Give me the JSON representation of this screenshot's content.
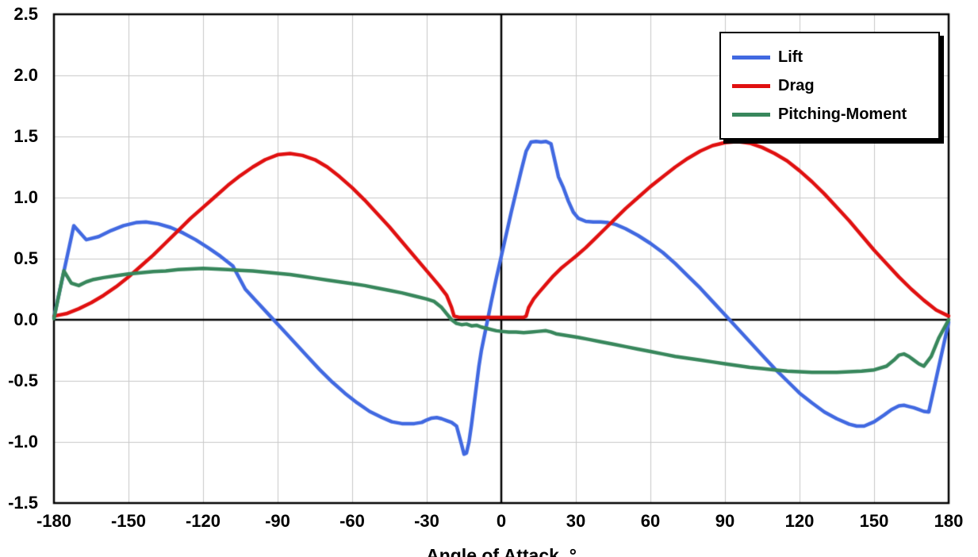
{
  "chart_data": {
    "type": "line",
    "title": "",
    "xlabel": "Angle of Attack, °",
    "ylabel": "",
    "xlim": [
      -180,
      180
    ],
    "ylim": [
      -1.5,
      2.5
    ],
    "grid": true,
    "legend_position": "top-right",
    "xticks": [
      -180,
      -150,
      -120,
      -90,
      -60,
      -30,
      0,
      30,
      60,
      90,
      120,
      150,
      180
    ],
    "xtick_labels": [
      "-180",
      "-150",
      "-120",
      "-90",
      "-60",
      "-30",
      "0",
      "30",
      "60",
      "90",
      "120",
      "150",
      "180"
    ],
    "yticks": [
      2.5,
      2.0,
      1.5,
      1.0,
      0.5,
      0.0,
      -0.5,
      -1.0,
      -1.5
    ],
    "ytick_labels": [
      "2.5",
      "2.0",
      "1.5",
      "1.0",
      "0.5",
      "0.0",
      "-0.5",
      "-1.0",
      "-1.5"
    ],
    "colors": {
      "grid": "#c8c8c8",
      "axis": "#000000",
      "border": "#000000"
    },
    "series": [
      {
        "name": "Lift",
        "color": "#4169e1",
        "points": [
          [
            -180,
            0.02
          ],
          [
            -172,
            0.77
          ],
          [
            -167,
            0.655
          ],
          [
            -162,
            0.68
          ],
          [
            -157,
            0.73
          ],
          [
            -152,
            0.77
          ],
          [
            -147,
            0.795
          ],
          [
            -143,
            0.8
          ],
          [
            -138,
            0.785
          ],
          [
            -133,
            0.755
          ],
          [
            -128,
            0.71
          ],
          [
            -123,
            0.655
          ],
          [
            -118,
            0.59
          ],
          [
            -113,
            0.52
          ],
          [
            -108,
            0.44
          ],
          [
            -103,
            0.25
          ],
          [
            -98,
            0.14
          ],
          [
            -93,
            0.03
          ],
          [
            -88,
            -0.08
          ],
          [
            -83,
            -0.19
          ],
          [
            -78,
            -0.3
          ],
          [
            -73,
            -0.41
          ],
          [
            -68,
            -0.51
          ],
          [
            -63,
            -0.6
          ],
          [
            -58,
            -0.68
          ],
          [
            -53,
            -0.75
          ],
          [
            -48,
            -0.8
          ],
          [
            -44,
            -0.835
          ],
          [
            -40,
            -0.85
          ],
          [
            -35,
            -0.85
          ],
          [
            -32,
            -0.84
          ],
          [
            -30,
            -0.82
          ],
          [
            -28,
            -0.805
          ],
          [
            -26,
            -0.8
          ],
          [
            -24,
            -0.81
          ],
          [
            -22,
            -0.825
          ],
          [
            -20,
            -0.84
          ],
          [
            -18,
            -0.87
          ],
          [
            -16,
            -1.02
          ],
          [
            -15,
            -1.1
          ],
          [
            -14,
            -1.09
          ],
          [
            -13,
            -1.0
          ],
          [
            -12,
            -0.86
          ],
          [
            -11,
            -0.7
          ],
          [
            -10,
            -0.54
          ],
          [
            -9,
            -0.38
          ],
          [
            -8,
            -0.25
          ],
          [
            -6,
            -0.05
          ],
          [
            -4,
            0.15
          ],
          [
            -2,
            0.34
          ],
          [
            0,
            0.52
          ],
          [
            2,
            0.7
          ],
          [
            4,
            0.88
          ],
          [
            6,
            1.05
          ],
          [
            8,
            1.22
          ],
          [
            10,
            1.38
          ],
          [
            12,
            1.455
          ],
          [
            14,
            1.46
          ],
          [
            16,
            1.455
          ],
          [
            18,
            1.46
          ],
          [
            20,
            1.44
          ],
          [
            21,
            1.35
          ],
          [
            23,
            1.17
          ],
          [
            25,
            1.08
          ],
          [
            27,
            0.97
          ],
          [
            29,
            0.88
          ],
          [
            31,
            0.83
          ],
          [
            34,
            0.805
          ],
          [
            37,
            0.8
          ],
          [
            40,
            0.8
          ],
          [
            43,
            0.795
          ],
          [
            46,
            0.78
          ],
          [
            50,
            0.745
          ],
          [
            55,
            0.69
          ],
          [
            60,
            0.625
          ],
          [
            65,
            0.55
          ],
          [
            70,
            0.46
          ],
          [
            75,
            0.36
          ],
          [
            80,
            0.26
          ],
          [
            85,
            0.15
          ],
          [
            90,
            0.04
          ],
          [
            95,
            -0.07
          ],
          [
            100,
            -0.18
          ],
          [
            105,
            -0.29
          ],
          [
            110,
            -0.4
          ],
          [
            115,
            -0.5
          ],
          [
            120,
            -0.6
          ],
          [
            125,
            -0.68
          ],
          [
            130,
            -0.755
          ],
          [
            135,
            -0.81
          ],
          [
            140,
            -0.855
          ],
          [
            143,
            -0.87
          ],
          [
            146,
            -0.87
          ],
          [
            150,
            -0.835
          ],
          [
            154,
            -0.78
          ],
          [
            157,
            -0.735
          ],
          [
            160,
            -0.705
          ],
          [
            162,
            -0.7
          ],
          [
            164,
            -0.71
          ],
          [
            166,
            -0.72
          ],
          [
            168,
            -0.735
          ],
          [
            170,
            -0.75
          ],
          [
            172,
            -0.755
          ],
          [
            180,
            -0.02
          ]
        ]
      },
      {
        "name": "Drag",
        "color": "#e01010",
        "points": [
          [
            -180,
            0.03
          ],
          [
            -175,
            0.05
          ],
          [
            -170,
            0.09
          ],
          [
            -165,
            0.14
          ],
          [
            -160,
            0.2
          ],
          [
            -155,
            0.27
          ],
          [
            -150,
            0.35
          ],
          [
            -145,
            0.44
          ],
          [
            -140,
            0.53
          ],
          [
            -135,
            0.63
          ],
          [
            -130,
            0.73
          ],
          [
            -125,
            0.83
          ],
          [
            -120,
            0.92
          ],
          [
            -115,
            1.01
          ],
          [
            -110,
            1.1
          ],
          [
            -105,
            1.18
          ],
          [
            -100,
            1.25
          ],
          [
            -95,
            1.31
          ],
          [
            -90,
            1.35
          ],
          [
            -85,
            1.36
          ],
          [
            -80,
            1.345
          ],
          [
            -75,
            1.31
          ],
          [
            -70,
            1.25
          ],
          [
            -65,
            1.17
          ],
          [
            -60,
            1.08
          ],
          [
            -55,
            0.98
          ],
          [
            -50,
            0.87
          ],
          [
            -45,
            0.76
          ],
          [
            -40,
            0.64
          ],
          [
            -35,
            0.52
          ],
          [
            -30,
            0.4
          ],
          [
            -25,
            0.28
          ],
          [
            -22,
            0.2
          ],
          [
            -20,
            0.1
          ],
          [
            -19,
            0.03
          ],
          [
            -17,
            0.02
          ],
          [
            -15,
            0.02
          ],
          [
            -10,
            0.02
          ],
          [
            -5,
            0.02
          ],
          [
            0,
            0.02
          ],
          [
            5,
            0.02
          ],
          [
            9,
            0.02
          ],
          [
            10,
            0.03
          ],
          [
            11,
            0.1
          ],
          [
            13,
            0.17
          ],
          [
            15,
            0.22
          ],
          [
            18,
            0.29
          ],
          [
            21,
            0.36
          ],
          [
            24,
            0.42
          ],
          [
            27,
            0.47
          ],
          [
            30,
            0.52
          ],
          [
            34,
            0.59
          ],
          [
            38,
            0.67
          ],
          [
            42,
            0.75
          ],
          [
            46,
            0.83
          ],
          [
            50,
            0.91
          ],
          [
            55,
            1.0
          ],
          [
            60,
            1.09
          ],
          [
            65,
            1.17
          ],
          [
            70,
            1.25
          ],
          [
            75,
            1.32
          ],
          [
            80,
            1.38
          ],
          [
            85,
            1.425
          ],
          [
            90,
            1.45
          ],
          [
            95,
            1.46
          ],
          [
            100,
            1.445
          ],
          [
            105,
            1.41
          ],
          [
            110,
            1.36
          ],
          [
            115,
            1.3
          ],
          [
            120,
            1.22
          ],
          [
            125,
            1.13
          ],
          [
            130,
            1.03
          ],
          [
            135,
            0.92
          ],
          [
            140,
            0.81
          ],
          [
            145,
            0.69
          ],
          [
            150,
            0.57
          ],
          [
            155,
            0.46
          ],
          [
            160,
            0.35
          ],
          [
            165,
            0.25
          ],
          [
            170,
            0.16
          ],
          [
            175,
            0.08
          ],
          [
            180,
            0.03
          ]
        ]
      },
      {
        "name": "Pitching-Moment",
        "color": "#38875c",
        "points": [
          [
            -180,
            0.01
          ],
          [
            -176,
            0.4
          ],
          [
            -173,
            0.3
          ],
          [
            -170,
            0.28
          ],
          [
            -167,
            0.31
          ],
          [
            -164,
            0.33
          ],
          [
            -160,
            0.345
          ],
          [
            -155,
            0.36
          ],
          [
            -150,
            0.375
          ],
          [
            -145,
            0.385
          ],
          [
            -140,
            0.395
          ],
          [
            -135,
            0.4
          ],
          [
            -130,
            0.41
          ],
          [
            -125,
            0.415
          ],
          [
            -120,
            0.42
          ],
          [
            -115,
            0.415
          ],
          [
            -110,
            0.41
          ],
          [
            -105,
            0.405
          ],
          [
            -100,
            0.4
          ],
          [
            -95,
            0.39
          ],
          [
            -90,
            0.38
          ],
          [
            -85,
            0.37
          ],
          [
            -80,
            0.355
          ],
          [
            -75,
            0.34
          ],
          [
            -70,
            0.325
          ],
          [
            -65,
            0.31
          ],
          [
            -60,
            0.295
          ],
          [
            -55,
            0.28
          ],
          [
            -50,
            0.26
          ],
          [
            -45,
            0.24
          ],
          [
            -40,
            0.22
          ],
          [
            -35,
            0.195
          ],
          [
            -30,
            0.17
          ],
          [
            -27,
            0.15
          ],
          [
            -24,
            0.1
          ],
          [
            -22,
            0.05
          ],
          [
            -20,
            0.0
          ],
          [
            -18,
            -0.03
          ],
          [
            -16,
            -0.04
          ],
          [
            -14,
            -0.035
          ],
          [
            -12,
            -0.05
          ],
          [
            -10,
            -0.045
          ],
          [
            -8,
            -0.06
          ],
          [
            -6,
            -0.07
          ],
          [
            -4,
            -0.08
          ],
          [
            -2,
            -0.09
          ],
          [
            0,
            -0.095
          ],
          [
            3,
            -0.1
          ],
          [
            6,
            -0.1
          ],
          [
            9,
            -0.105
          ],
          [
            12,
            -0.1
          ],
          [
            15,
            -0.095
          ],
          [
            18,
            -0.09
          ],
          [
            20,
            -0.1
          ],
          [
            22,
            -0.115
          ],
          [
            25,
            -0.125
          ],
          [
            28,
            -0.135
          ],
          [
            31,
            -0.145
          ],
          [
            35,
            -0.16
          ],
          [
            40,
            -0.18
          ],
          [
            45,
            -0.2
          ],
          [
            50,
            -0.22
          ],
          [
            55,
            -0.24
          ],
          [
            60,
            -0.26
          ],
          [
            65,
            -0.28
          ],
          [
            70,
            -0.3
          ],
          [
            75,
            -0.315
          ],
          [
            80,
            -0.33
          ],
          [
            85,
            -0.345
          ],
          [
            90,
            -0.36
          ],
          [
            95,
            -0.375
          ],
          [
            100,
            -0.39
          ],
          [
            105,
            -0.4
          ],
          [
            110,
            -0.41
          ],
          [
            115,
            -0.42
          ],
          [
            120,
            -0.425
          ],
          [
            125,
            -0.43
          ],
          [
            130,
            -0.43
          ],
          [
            135,
            -0.43
          ],
          [
            140,
            -0.425
          ],
          [
            145,
            -0.42
          ],
          [
            150,
            -0.41
          ],
          [
            155,
            -0.38
          ],
          [
            158,
            -0.33
          ],
          [
            160,
            -0.29
          ],
          [
            162,
            -0.28
          ],
          [
            164,
            -0.3
          ],
          [
            166,
            -0.33
          ],
          [
            168,
            -0.36
          ],
          [
            170,
            -0.38
          ],
          [
            173,
            -0.3
          ],
          [
            176,
            -0.15
          ],
          [
            180,
            0.0
          ]
        ]
      }
    ]
  },
  "legend": {
    "items": [
      {
        "label": "Lift"
      },
      {
        "label": "Drag"
      },
      {
        "label": "Pitching-Moment"
      }
    ]
  }
}
